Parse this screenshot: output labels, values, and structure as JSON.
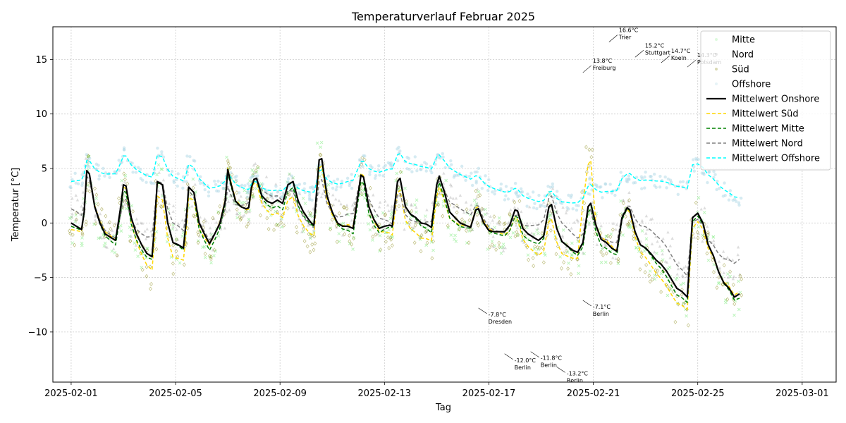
{
  "chart_data": {
    "type": "line",
    "title": "Temperaturverlauf Februar 2025",
    "xlabel": "Tag",
    "ylabel": "Temperatur [°C]",
    "x_range": [
      "2025-02-01",
      "2025-03-01"
    ],
    "xlim": [
      -0.7,
      29.3
    ],
    "ylim": [
      -14.6,
      18
    ],
    "x_ticks": [
      {
        "day": 0,
        "label": "2025-02-01"
      },
      {
        "day": 4,
        "label": "2025-02-05"
      },
      {
        "day": 8,
        "label": "2025-02-09"
      },
      {
        "day": 12,
        "label": "2025-02-13"
      },
      {
        "day": 16,
        "label": "2025-02-17"
      },
      {
        "day": 20,
        "label": "2025-02-21"
      },
      {
        "day": 24,
        "label": "2025-02-25"
      },
      {
        "day": 28,
        "label": "2025-03-01"
      }
    ],
    "y_ticks": [
      {
        "value": -10,
        "label": "−10"
      },
      {
        "value": -5,
        "label": "−5"
      },
      {
        "value": 0,
        "label": "0"
      },
      {
        "value": 5,
        "label": "5"
      },
      {
        "value": 10,
        "label": "10"
      },
      {
        "value": 15,
        "label": "15"
      }
    ],
    "grid": true,
    "legend_position": "top-right",
    "scatter_series": [
      {
        "name": "Mitte",
        "color": "#90ee90",
        "marker": "x"
      },
      {
        "name": "Nord",
        "color": "#a9a9a9",
        "marker": "triangle"
      },
      {
        "name": "Süd",
        "color": "#808000",
        "marker": "diamond"
      },
      {
        "name": "Offshore",
        "color": "#add8e6",
        "marker": "circle"
      }
    ],
    "line_series": [
      {
        "name": "Mittelwert Onshore",
        "color": "#000000",
        "style": "solid",
        "width": 2.2,
        "points": [
          [
            0,
            0
          ],
          [
            0.2,
            -0.3
          ],
          [
            0.4,
            -0.6
          ],
          [
            0.5,
            1
          ],
          [
            0.6,
            4.8
          ],
          [
            0.7,
            4.5
          ],
          [
            0.9,
            1.5
          ],
          [
            1.1,
            0
          ],
          [
            1.3,
            -1
          ],
          [
            1.5,
            -1.3
          ],
          [
            1.7,
            -1.6
          ],
          [
            1.9,
            1.5
          ],
          [
            2,
            3.5
          ],
          [
            2.1,
            3.4
          ],
          [
            2.3,
            0.5
          ],
          [
            2.5,
            -1
          ],
          [
            2.7,
            -2
          ],
          [
            2.9,
            -2.8
          ],
          [
            3.1,
            -3.1
          ],
          [
            3.2,
            0
          ],
          [
            3.3,
            3.8
          ],
          [
            3.5,
            3.5
          ],
          [
            3.7,
            0
          ],
          [
            3.9,
            -1.8
          ],
          [
            4.1,
            -2
          ],
          [
            4.3,
            -2.3
          ],
          [
            4.4,
            0
          ],
          [
            4.5,
            3.3
          ],
          [
            4.7,
            2.8
          ],
          [
            4.9,
            0
          ],
          [
            5.1,
            -1
          ],
          [
            5.3,
            -1.9
          ],
          [
            5.5,
            -1
          ],
          [
            5.7,
            0
          ],
          [
            5.9,
            2
          ],
          [
            6,
            4.9
          ],
          [
            6.1,
            3.8
          ],
          [
            6.3,
            2
          ],
          [
            6.5,
            1.5
          ],
          [
            6.7,
            1.3
          ],
          [
            6.8,
            1.4
          ],
          [
            6.9,
            3.2
          ],
          [
            7,
            4
          ],
          [
            7.1,
            4.1
          ],
          [
            7.3,
            2.5
          ],
          [
            7.5,
            2
          ],
          [
            7.7,
            1.8
          ],
          [
            7.9,
            2.1
          ],
          [
            8.1,
            1.8
          ],
          [
            8.3,
            3.5
          ],
          [
            8.5,
            3.8
          ],
          [
            8.7,
            2
          ],
          [
            8.9,
            1
          ],
          [
            9.1,
            0.3
          ],
          [
            9.2,
            0
          ],
          [
            9.3,
            -0.2
          ],
          [
            9.5,
            5.8
          ],
          [
            9.6,
            5.9
          ],
          [
            9.8,
            2.5
          ],
          [
            10,
            1
          ],
          [
            10.2,
            0
          ],
          [
            10.4,
            -0.3
          ],
          [
            10.6,
            -0.3
          ],
          [
            10.8,
            -0.5
          ],
          [
            11.1,
            4.4
          ],
          [
            11.2,
            4.2
          ],
          [
            11.4,
            1.5
          ],
          [
            11.6,
            0.3
          ],
          [
            11.8,
            -0.5
          ],
          [
            12,
            -0.3
          ],
          [
            12.2,
            -0.2
          ],
          [
            12.3,
            -0.3
          ],
          [
            12.5,
            3.8
          ],
          [
            12.6,
            4.1
          ],
          [
            12.8,
            1.5
          ],
          [
            13,
            0.8
          ],
          [
            13.2,
            0.5
          ],
          [
            13.4,
            0
          ],
          [
            13.6,
            -0.1
          ],
          [
            13.8,
            -0.4
          ],
          [
            14,
            3.5
          ],
          [
            14.1,
            4.3
          ],
          [
            14.3,
            2.8
          ],
          [
            14.5,
            1
          ],
          [
            14.7,
            0.5
          ],
          [
            14.9,
            0
          ],
          [
            15.1,
            -0.2
          ],
          [
            15.3,
            -0.4
          ],
          [
            15.5,
            1.2
          ],
          [
            15.6,
            1.3
          ],
          [
            15.8,
            0
          ],
          [
            16,
            -0.7
          ],
          [
            16.2,
            -0.8
          ],
          [
            16.4,
            -0.8
          ],
          [
            16.6,
            -0.8
          ],
          [
            16.8,
            -0.2
          ],
          [
            17,
            1.2
          ],
          [
            17.1,
            1.1
          ],
          [
            17.3,
            -0.5
          ],
          [
            17.5,
            -1
          ],
          [
            17.7,
            -1.3
          ],
          [
            17.9,
            -1.6
          ],
          [
            18.1,
            -1.2
          ],
          [
            18.3,
            1.5
          ],
          [
            18.4,
            1.7
          ],
          [
            18.6,
            -0.5
          ],
          [
            18.8,
            -1.7
          ],
          [
            19,
            -2.1
          ],
          [
            19.2,
            -2.5
          ],
          [
            19.4,
            -2.7
          ],
          [
            19.6,
            -1.8
          ],
          [
            19.8,
            1.5
          ],
          [
            19.9,
            1.8
          ],
          [
            20.1,
            -0.2
          ],
          [
            20.3,
            -1.5
          ],
          [
            20.5,
            -1.8
          ],
          [
            20.7,
            -2.3
          ],
          [
            20.9,
            -2.6
          ],
          [
            21.1,
            0.5
          ],
          [
            21.3,
            1.4
          ],
          [
            21.4,
            1.2
          ],
          [
            21.6,
            -0.8
          ],
          [
            21.8,
            -2
          ],
          [
            22,
            -2.3
          ],
          [
            22.2,
            -2.8
          ],
          [
            22.4,
            -3.4
          ],
          [
            22.6,
            -3.8
          ],
          [
            22.8,
            -4.4
          ],
          [
            23,
            -5.2
          ],
          [
            23.2,
            -6
          ],
          [
            23.4,
            -6.3
          ],
          [
            23.6,
            -6.8
          ],
          [
            23.8,
            0.5
          ],
          [
            24,
            0.9
          ],
          [
            24.2,
            0
          ],
          [
            24.4,
            -2
          ],
          [
            24.6,
            -3
          ],
          [
            24.8,
            -4.5
          ],
          [
            25,
            -5.5
          ],
          [
            25.2,
            -6
          ],
          [
            25.4,
            -6.8
          ],
          [
            25.6,
            -6.5
          ]
        ]
      },
      {
        "name": "Mittelwert Süd",
        "color": "#ffd700",
        "style": "dashed",
        "width": 1.5,
        "points": []
      },
      {
        "name": "Mittelwert Mitte",
        "color": "#008000",
        "style": "dashed",
        "width": 1.5,
        "points": []
      },
      {
        "name": "Mittelwert Nord",
        "color": "#808080",
        "style": "dashed",
        "width": 1.5,
        "points": []
      },
      {
        "name": "Mittelwert Offshore",
        "color": "#00ffff",
        "style": "dashed",
        "width": 1.5,
        "points": []
      }
    ],
    "annotations": [
      {
        "value_label": "16.6°C",
        "city": "Trier",
        "x": 20.6,
        "y": 16.6
      },
      {
        "value_label": "15.2°C",
        "city": "Stuttgart",
        "x": 21.6,
        "y": 15.2
      },
      {
        "value_label": "14.7°C",
        "city": "Koeln",
        "x": 22.6,
        "y": 14.7
      },
      {
        "value_label": "14.3°C",
        "city": "Potsdam",
        "x": 23.6,
        "y": 14.3
      },
      {
        "value_label": "13.8°C",
        "city": "Freiburg",
        "x": 19.6,
        "y": 13.8
      },
      {
        "value_label": "-7.8°C",
        "city": "Dresden",
        "x": 15.6,
        "y": -7.8
      },
      {
        "value_label": "-12.0°C",
        "city": "Berlin",
        "x": 16.6,
        "y": -12.0
      },
      {
        "value_label": "-11.8°C",
        "city": "Berlin",
        "x": 17.6,
        "y": -11.8
      },
      {
        "value_label": "-13.2°C",
        "city": "Berlin",
        "x": 18.6,
        "y": -13.2
      },
      {
        "value_label": "-7.1°C",
        "city": "Berlin",
        "x": 19.6,
        "y": -7.1
      }
    ]
  }
}
